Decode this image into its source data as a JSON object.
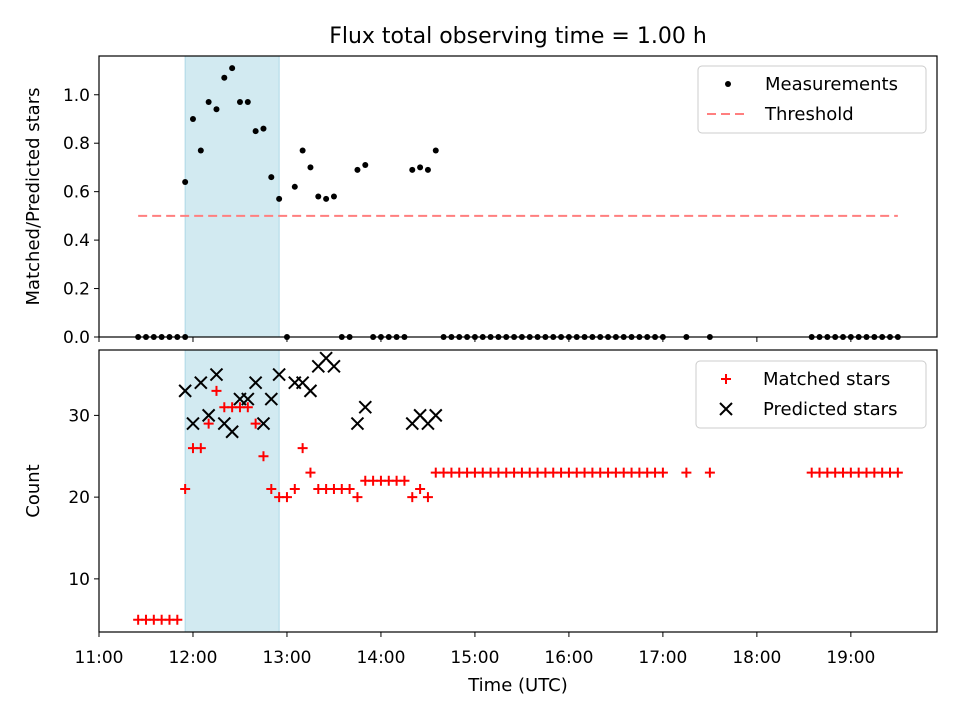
{
  "title": "Flux total observing time = 1.00 h",
  "colors": {
    "shade": "#add8e6",
    "matched": "#ff0000",
    "predicted": "#000000",
    "threshold": "#ff7f7f"
  },
  "chart_data": [
    {
      "type": "scatter",
      "xlabel": "",
      "ylabel": "Matched/Predicted stars",
      "xlim": [
        "11:00",
        "19:55"
      ],
      "ylim": [
        0,
        1.16
      ],
      "yticks": [
        "0.0",
        "0.2",
        "0.4",
        "0.6",
        "0.8",
        "1.0"
      ],
      "legend_position": "top-right",
      "shaded_span": [
        "11:55",
        "12:55"
      ],
      "series": [
        {
          "name": "Measurements",
          "points": [
            [
              "11:25",
              0
            ],
            [
              "11:30",
              0
            ],
            [
              "11:35",
              0
            ],
            [
              "11:40",
              0
            ],
            [
              "11:45",
              0
            ],
            [
              "11:50",
              0
            ],
            [
              "11:55",
              0
            ],
            [
              "11:55",
              0.64
            ],
            [
              "12:00",
              0.9
            ],
            [
              "12:05",
              0.77
            ],
            [
              "12:10",
              0.97
            ],
            [
              "12:15",
              0.94
            ],
            [
              "12:20",
              1.07
            ],
            [
              "12:25",
              1.11
            ],
            [
              "12:30",
              0.97
            ],
            [
              "12:35",
              0.97
            ],
            [
              "12:40",
              0.85
            ],
            [
              "12:45",
              0.86
            ],
            [
              "12:50",
              0.66
            ],
            [
              "12:55",
              0.57
            ],
            [
              "13:00",
              0
            ],
            [
              "13:05",
              0.62
            ],
            [
              "13:10",
              0.77
            ],
            [
              "13:15",
              0.7
            ],
            [
              "13:20",
              0.58
            ],
            [
              "13:25",
              0.57
            ],
            [
              "13:30",
              0.58
            ],
            [
              "13:35",
              0
            ],
            [
              "13:40",
              0
            ],
            [
              "13:45",
              0.69
            ],
            [
              "13:50",
              0.71
            ],
            [
              "13:55",
              0
            ],
            [
              "14:00",
              0
            ],
            [
              "14:05",
              0
            ],
            [
              "14:10",
              0
            ],
            [
              "14:15",
              0
            ],
            [
              "14:20",
              0.69
            ],
            [
              "14:25",
              0.7
            ],
            [
              "14:30",
              0.69
            ],
            [
              "14:35",
              0.77
            ],
            [
              "14:40",
              0
            ],
            [
              "14:45",
              0
            ],
            [
              "14:50",
              0
            ],
            [
              "14:55",
              0
            ],
            [
              "15:00",
              0
            ],
            [
              "15:05",
              0
            ],
            [
              "15:10",
              0
            ],
            [
              "15:15",
              0
            ],
            [
              "15:20",
              0
            ],
            [
              "15:25",
              0
            ],
            [
              "15:30",
              0
            ],
            [
              "15:35",
              0
            ],
            [
              "15:40",
              0
            ],
            [
              "15:45",
              0
            ],
            [
              "15:50",
              0
            ],
            [
              "15:55",
              0
            ],
            [
              "16:00",
              0
            ],
            [
              "16:05",
              0
            ],
            [
              "16:10",
              0
            ],
            [
              "16:15",
              0
            ],
            [
              "16:20",
              0
            ],
            [
              "16:25",
              0
            ],
            [
              "16:30",
              0
            ],
            [
              "16:35",
              0
            ],
            [
              "16:40",
              0
            ],
            [
              "16:45",
              0
            ],
            [
              "16:50",
              0
            ],
            [
              "16:55",
              0
            ],
            [
              "17:00",
              0
            ],
            [
              "17:15",
              0
            ],
            [
              "17:30",
              0
            ],
            [
              "18:35",
              0
            ],
            [
              "18:40",
              0
            ],
            [
              "18:45",
              0
            ],
            [
              "18:50",
              0
            ],
            [
              "18:55",
              0
            ],
            [
              "19:00",
              0
            ],
            [
              "19:05",
              0
            ],
            [
              "19:10",
              0
            ],
            [
              "19:15",
              0
            ],
            [
              "19:20",
              0
            ],
            [
              "19:25",
              0
            ],
            [
              "19:30",
              0
            ]
          ]
        },
        {
          "name": "Threshold",
          "style": "dashed",
          "x": [
            "11:25",
            "19:30"
          ],
          "value": 0.5
        }
      ]
    },
    {
      "type": "scatter",
      "xlabel": "Time (UTC)",
      "ylabel": "Count",
      "xlim": [
        "11:00",
        "19:55"
      ],
      "ylim": [
        3.5,
        38
      ],
      "xticks": [
        "11:00",
        "12:00",
        "13:00",
        "14:00",
        "15:00",
        "16:00",
        "17:00",
        "18:00",
        "19:00"
      ],
      "yticks": [
        "10",
        "20",
        "30"
      ],
      "legend_position": "top-right",
      "shaded_span": [
        "11:55",
        "12:55"
      ],
      "series": [
        {
          "name": "Matched stars",
          "marker": "+",
          "points": [
            [
              "11:25",
              5
            ],
            [
              "11:30",
              5
            ],
            [
              "11:35",
              5
            ],
            [
              "11:40",
              5
            ],
            [
              "11:45",
              5
            ],
            [
              "11:50",
              5
            ],
            [
              "11:55",
              21
            ],
            [
              "12:00",
              26
            ],
            [
              "12:05",
              26
            ],
            [
              "12:10",
              29
            ],
            [
              "12:15",
              33
            ],
            [
              "12:20",
              31
            ],
            [
              "12:25",
              31
            ],
            [
              "12:30",
              31
            ],
            [
              "12:35",
              31
            ],
            [
              "12:40",
              29
            ],
            [
              "12:45",
              25
            ],
            [
              "12:50",
              21
            ],
            [
              "12:55",
              20
            ],
            [
              "13:00",
              20
            ],
            [
              "13:05",
              21
            ],
            [
              "13:10",
              26
            ],
            [
              "13:15",
              23
            ],
            [
              "13:20",
              21
            ],
            [
              "13:25",
              21
            ],
            [
              "13:30",
              21
            ],
            [
              "13:35",
              21
            ],
            [
              "13:40",
              21
            ],
            [
              "13:45",
              20
            ],
            [
              "13:50",
              22
            ],
            [
              "13:55",
              22
            ],
            [
              "14:00",
              22
            ],
            [
              "14:05",
              22
            ],
            [
              "14:10",
              22
            ],
            [
              "14:15",
              22
            ],
            [
              "14:20",
              20
            ],
            [
              "14:25",
              21
            ],
            [
              "14:30",
              20
            ],
            [
              "14:35",
              23
            ],
            [
              "14:40",
              23
            ],
            [
              "14:45",
              23
            ],
            [
              "14:50",
              23
            ],
            [
              "14:55",
              23
            ],
            [
              "15:00",
              23
            ],
            [
              "15:05",
              23
            ],
            [
              "15:10",
              23
            ],
            [
              "15:15",
              23
            ],
            [
              "15:20",
              23
            ],
            [
              "15:25",
              23
            ],
            [
              "15:30",
              23
            ],
            [
              "15:35",
              23
            ],
            [
              "15:40",
              23
            ],
            [
              "15:45",
              23
            ],
            [
              "15:50",
              23
            ],
            [
              "15:55",
              23
            ],
            [
              "16:00",
              23
            ],
            [
              "16:05",
              23
            ],
            [
              "16:10",
              23
            ],
            [
              "16:15",
              23
            ],
            [
              "16:20",
              23
            ],
            [
              "16:25",
              23
            ],
            [
              "16:30",
              23
            ],
            [
              "16:35",
              23
            ],
            [
              "16:40",
              23
            ],
            [
              "16:45",
              23
            ],
            [
              "16:50",
              23
            ],
            [
              "16:55",
              23
            ],
            [
              "17:00",
              23
            ],
            [
              "17:15",
              23
            ],
            [
              "17:30",
              23
            ],
            [
              "18:35",
              23
            ],
            [
              "18:40",
              23
            ],
            [
              "18:45",
              23
            ],
            [
              "18:50",
              23
            ],
            [
              "18:55",
              23
            ],
            [
              "19:00",
              23
            ],
            [
              "19:05",
              23
            ],
            [
              "19:10",
              23
            ],
            [
              "19:15",
              23
            ],
            [
              "19:20",
              23
            ],
            [
              "19:25",
              23
            ],
            [
              "19:30",
              23
            ]
          ]
        },
        {
          "name": "Predicted stars",
          "marker": "x",
          "points": [
            [
              "11:55",
              33
            ],
            [
              "12:00",
              29
            ],
            [
              "12:05",
              34
            ],
            [
              "12:10",
              30
            ],
            [
              "12:15",
              35
            ],
            [
              "12:20",
              29
            ],
            [
              "12:25",
              28
            ],
            [
              "12:30",
              32
            ],
            [
              "12:35",
              32
            ],
            [
              "12:40",
              34
            ],
            [
              "12:45",
              29
            ],
            [
              "12:50",
              32
            ],
            [
              "12:55",
              35
            ],
            [
              "13:05",
              34
            ],
            [
              "13:10",
              34
            ],
            [
              "13:15",
              33
            ],
            [
              "13:20",
              36
            ],
            [
              "13:25",
              37
            ],
            [
              "13:30",
              36
            ],
            [
              "13:45",
              29
            ],
            [
              "13:50",
              31
            ],
            [
              "14:20",
              29
            ],
            [
              "14:25",
              30
            ],
            [
              "14:30",
              29
            ],
            [
              "14:35",
              30
            ]
          ]
        }
      ]
    }
  ]
}
